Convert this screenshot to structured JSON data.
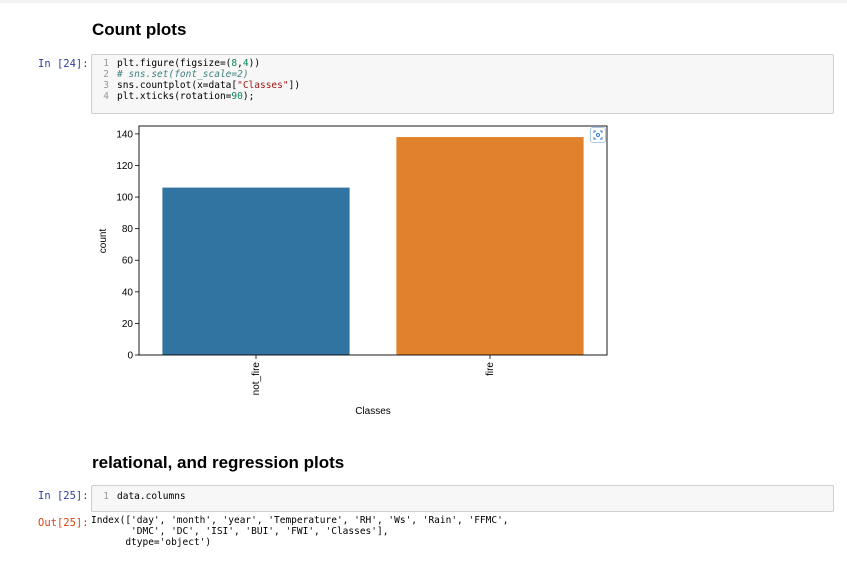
{
  "headings": {
    "count_plots": "Count plots",
    "relational": "relational, and regression plots"
  },
  "cell24": {
    "prompt": "In [24]:",
    "lines": [
      {
        "n": "1",
        "parts": [
          {
            "t": "plt.figure(figsize=(",
            "c": ""
          },
          {
            "t": "8",
            "c": "kw-num"
          },
          {
            "t": ",",
            "c": ""
          },
          {
            "t": "4",
            "c": "kw-num"
          },
          {
            "t": "))",
            "c": ""
          }
        ]
      },
      {
        "n": "2",
        "parts": [
          {
            "t": "# sns.set(font_scale=2)",
            "c": "kw-com"
          }
        ]
      },
      {
        "n": "3",
        "parts": [
          {
            "t": "sns.countplot(x=data[",
            "c": ""
          },
          {
            "t": "\"Classes\"",
            "c": "kw-str"
          },
          {
            "t": "])",
            "c": ""
          }
        ]
      },
      {
        "n": "4",
        "parts": [
          {
            "t": "plt.xticks(rotation=",
            "c": ""
          },
          {
            "t": "90",
            "c": "kw-num"
          },
          {
            "t": ");",
            "c": ""
          }
        ]
      }
    ]
  },
  "cell25": {
    "prompt": "In [25]:",
    "lines": [
      {
        "n": "1",
        "parts": [
          {
            "t": "data.columns",
            "c": ""
          }
        ]
      }
    ],
    "out_prompt": "Out[25]:",
    "output": "Index(['day', 'month', 'year', 'Temperature', 'RH', 'Ws', 'Rain', 'FFMC',\n       'DMC', 'DC', 'ISI', 'BUI', 'FWI', 'Classes'],\n      dtype='object')"
  },
  "chart_data": {
    "type": "bar",
    "categories": [
      "not_fire",
      "fire"
    ],
    "values": [
      106,
      138
    ],
    "colors": [
      "#3274a1",
      "#e1812c"
    ],
    "xlabel": "Classes",
    "ylabel": "count",
    "ylim": [
      0,
      145
    ],
    "yticks": [
      0,
      20,
      40,
      60,
      80,
      100,
      120,
      140
    ],
    "grid": false,
    "xtick_rotation": 90
  }
}
